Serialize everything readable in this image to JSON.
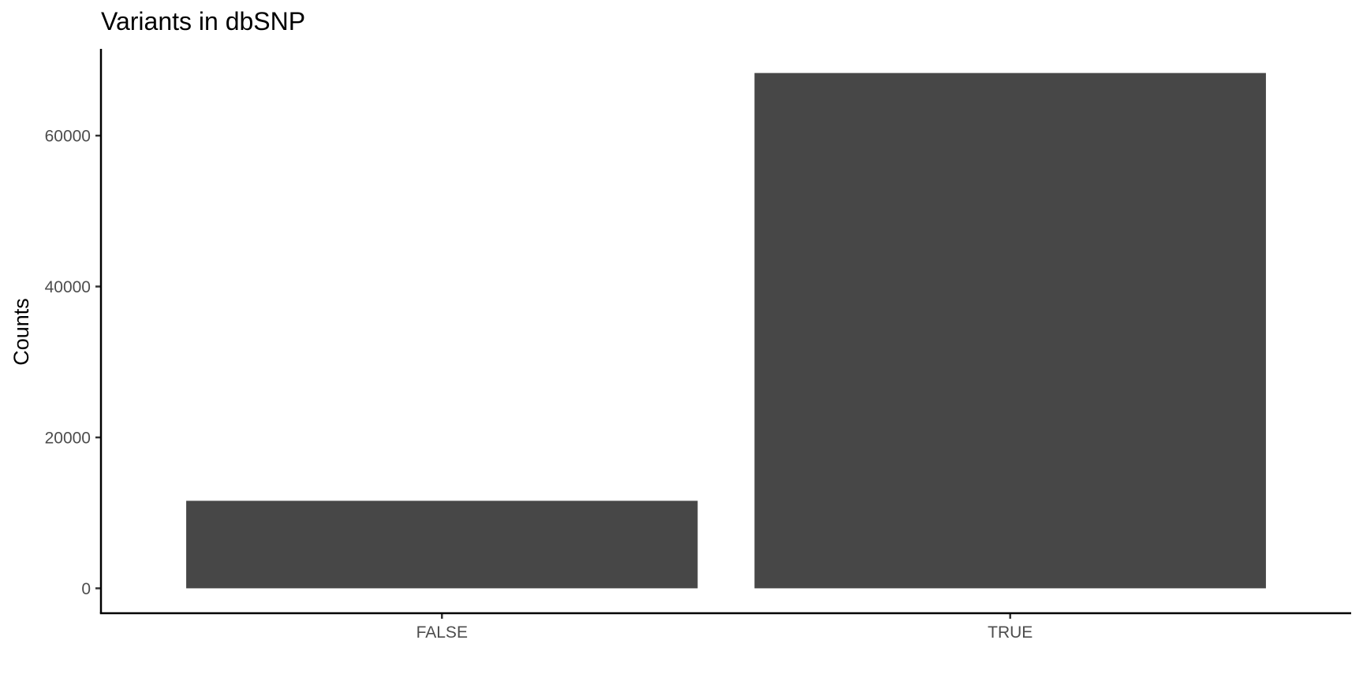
{
  "chart_data": {
    "type": "bar",
    "title": "Variants in dbSNP",
    "xlabel": "",
    "ylabel": "Counts",
    "categories": [
      "FALSE",
      "TRUE"
    ],
    "values": [
      11600,
      68300
    ],
    "ylim": [
      -3300,
      71500
    ],
    "yticks": [
      0,
      20000,
      40000,
      60000
    ],
    "grid": false,
    "legend": "none",
    "bar_color": "#474747"
  }
}
